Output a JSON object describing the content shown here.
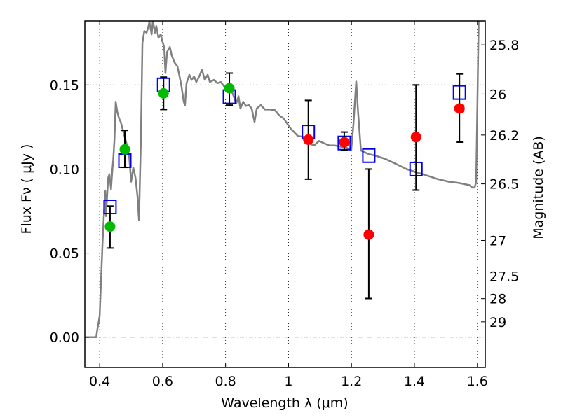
{
  "chart_data": {
    "type": "scatter",
    "title": "",
    "xlabel": "Wavelength  λ (μm)",
    "ylabel": "Flux  Fν  ( μJy )",
    "ylabel_right": "Magnitude (AB)",
    "xlim": [
      0.353,
      1.625
    ],
    "ylim": [
      -0.018,
      0.188
    ],
    "grid": true,
    "x_ticks": [
      {
        "value": 0.4,
        "label": "0.4"
      },
      {
        "value": 0.6,
        "label": "0.6"
      },
      {
        "value": 0.8,
        "label": "0.8"
      },
      {
        "value": 1.0,
        "label": "1"
      },
      {
        "value": 1.2,
        "label": "1.2"
      },
      {
        "value": 1.4,
        "label": "1.4"
      },
      {
        "value": 1.6,
        "label": "1.6"
      }
    ],
    "y_ticks": [
      {
        "value": 0.0,
        "label": "0.00"
      },
      {
        "value": 0.05,
        "label": "0.05"
      },
      {
        "value": 0.1,
        "label": "0.10"
      },
      {
        "value": 0.15,
        "label": "0.15"
      }
    ],
    "y_right_ticks": [
      {
        "mag": 25.8,
        "label": "25.8"
      },
      {
        "mag": 26.0,
        "label": "26"
      },
      {
        "mag": 26.2,
        "label": "26.2"
      },
      {
        "mag": 26.5,
        "label": "26.5"
      },
      {
        "mag": 27.0,
        "label": "27"
      },
      {
        "mag": 27.5,
        "label": "27.5"
      },
      {
        "mag": 28.0,
        "label": "28"
      },
      {
        "mag": 29.0,
        "label": "29"
      }
    ],
    "mag_zeropoint": 23.9,
    "colors": {
      "spectrum": "#808080",
      "model_box": "#0000ee",
      "obs_green": "#00bb00",
      "obs_red": "#ff0000",
      "errorbar": "#000000",
      "grid": "#000000"
    },
    "spectrum": [
      [
        0.353,
        0
      ],
      [
        0.389,
        0
      ],
      [
        0.393,
        0.005
      ],
      [
        0.4,
        0.0125
      ],
      [
        0.409,
        0.055
      ],
      [
        0.416,
        0.082
      ],
      [
        0.418,
        0.087
      ],
      [
        0.42,
        0.072
      ],
      [
        0.427,
        0.0946
      ],
      [
        0.431,
        0.097
      ],
      [
        0.436,
        0.088
      ],
      [
        0.44,
        0.099
      ],
      [
        0.443,
        0.105
      ],
      [
        0.447,
        0.1175
      ],
      [
        0.451,
        0.14
      ],
      [
        0.456,
        0.134
      ],
      [
        0.462,
        0.13
      ],
      [
        0.467,
        0.128
      ],
      [
        0.476,
        0.1217
      ],
      [
        0.485,
        0.1154
      ],
      [
        0.494,
        0.107
      ],
      [
        0.5,
        0.0925
      ],
      [
        0.507,
        0.1008
      ],
      [
        0.514,
        0.0946
      ],
      [
        0.52,
        0.084
      ],
      [
        0.525,
        0.0696
      ],
      [
        0.531,
        0.1175
      ],
      [
        0.536,
        0.175
      ],
      [
        0.542,
        0.182
      ],
      [
        0.549,
        0.181
      ],
      [
        0.554,
        0.184
      ],
      [
        0.558,
        0.1875
      ],
      [
        0.565,
        0.18
      ],
      [
        0.569,
        0.188
      ],
      [
        0.576,
        0.181
      ],
      [
        0.58,
        0.185
      ],
      [
        0.587,
        0.178
      ],
      [
        0.594,
        0.18
      ],
      [
        0.598,
        0.1767
      ],
      [
        0.605,
        0.1725
      ],
      [
        0.609,
        0.157
      ],
      [
        0.614,
        0.1696
      ],
      [
        0.623,
        0.1725
      ],
      [
        0.629,
        0.1675
      ],
      [
        0.638,
        0.1633
      ],
      [
        0.647,
        0.161
      ],
      [
        0.654,
        0.155
      ],
      [
        0.66,
        0.149
      ],
      [
        0.667,
        0.14
      ],
      [
        0.671,
        0.138
      ],
      [
        0.676,
        0.151
      ],
      [
        0.685,
        0.156
      ],
      [
        0.692,
        0.153
      ],
      [
        0.7,
        0.155
      ],
      [
        0.707,
        0.1517
      ],
      [
        0.716,
        0.155
      ],
      [
        0.725,
        0.159
      ],
      [
        0.734,
        0.153
      ],
      [
        0.743,
        0.156
      ],
      [
        0.75,
        0.1517
      ],
      [
        0.763,
        0.153
      ],
      [
        0.774,
        0.151
      ],
      [
        0.785,
        0.1517
      ],
      [
        0.796,
        0.149
      ],
      [
        0.805,
        0.1475
      ],
      [
        0.814,
        0.149
      ],
      [
        0.823,
        0.1446
      ],
      [
        0.834,
        0.139
      ],
      [
        0.841,
        0.1433
      ],
      [
        0.847,
        0.136
      ],
      [
        0.856,
        0.14
      ],
      [
        0.865,
        0.1375
      ],
      [
        0.874,
        0.138
      ],
      [
        0.883,
        0.136
      ],
      [
        0.892,
        0.128
      ],
      [
        0.899,
        0.136
      ],
      [
        0.912,
        0.138
      ],
      [
        0.925,
        0.1354
      ],
      [
        0.941,
        0.1354
      ],
      [
        0.957,
        0.135
      ],
      [
        0.97,
        0.132
      ],
      [
        0.985,
        0.13
      ],
      [
        0.997,
        0.1267
      ],
      [
        1.008,
        0.1238
      ],
      [
        1.019,
        0.1217
      ],
      [
        1.03,
        0.1196
      ],
      [
        1.046,
        0.1192
      ],
      [
        1.064,
        0.1154
      ],
      [
        1.081,
        0.114
      ],
      [
        1.097,
        0.1167
      ],
      [
        1.112,
        0.1154
      ],
      [
        1.13,
        0.114
      ],
      [
        1.148,
        0.114
      ],
      [
        1.166,
        0.1133
      ],
      [
        1.186,
        0.1125
      ],
      [
        1.199,
        0.111
      ],
      [
        1.206,
        0.126
      ],
      [
        1.215,
        0.152
      ],
      [
        1.221,
        0.134
      ],
      [
        1.23,
        0.111
      ],
      [
        1.253,
        0.109
      ],
      [
        1.275,
        0.108
      ],
      [
        1.308,
        0.106
      ],
      [
        1.342,
        0.103
      ],
      [
        1.375,
        0.1
      ],
      [
        1.408,
        0.098
      ],
      [
        1.442,
        0.096
      ],
      [
        1.475,
        0.094
      ],
      [
        1.509,
        0.0925
      ],
      [
        1.542,
        0.0917
      ],
      [
        1.575,
        0.0904
      ],
      [
        1.584,
        0.089
      ],
      [
        1.591,
        0.089
      ],
      [
        1.596,
        0.092
      ],
      [
        1.6,
        0.138
      ],
      [
        1.604,
        0.188
      ]
    ],
    "model_fluxes": [
      {
        "x": 0.433,
        "y": 0.0775
      },
      {
        "x": 0.48,
        "y": 0.105
      },
      {
        "x": 0.603,
        "y": 0.15
      },
      {
        "x": 0.812,
        "y": 0.143
      },
      {
        "x": 1.063,
        "y": 0.122
      },
      {
        "x": 1.177,
        "y": 0.1155
      },
      {
        "x": 1.255,
        "y": 0.108
      },
      {
        "x": 1.405,
        "y": 0.1
      },
      {
        "x": 1.543,
        "y": 0.1455
      }
    ],
    "observations": [
      {
        "x": 0.433,
        "y": 0.0658,
        "ylow": 0.053,
        "yhigh": 0.078,
        "color": "green"
      },
      {
        "x": 0.48,
        "y": 0.1117,
        "ylow": 0.101,
        "yhigh": 0.123,
        "color": "green"
      },
      {
        "x": 0.603,
        "y": 0.145,
        "ylow": 0.1354,
        "yhigh": 0.1546,
        "color": "green"
      },
      {
        "x": 0.812,
        "y": 0.148,
        "ylow": 0.138,
        "yhigh": 0.157,
        "color": "green"
      },
      {
        "x": 1.063,
        "y": 0.1175,
        "ylow": 0.094,
        "yhigh": 0.1408,
        "color": "red"
      },
      {
        "x": 1.177,
        "y": 0.116,
        "ylow": 0.111,
        "yhigh": 0.122,
        "color": "red"
      },
      {
        "x": 1.255,
        "y": 0.061,
        "ylow": 0.023,
        "yhigh": 0.1,
        "color": "red"
      },
      {
        "x": 1.405,
        "y": 0.119,
        "ylow": 0.0875,
        "yhigh": 0.15,
        "color": "red"
      },
      {
        "x": 1.543,
        "y": 0.136,
        "ylow": 0.116,
        "yhigh": 0.1565,
        "color": "red"
      }
    ]
  }
}
